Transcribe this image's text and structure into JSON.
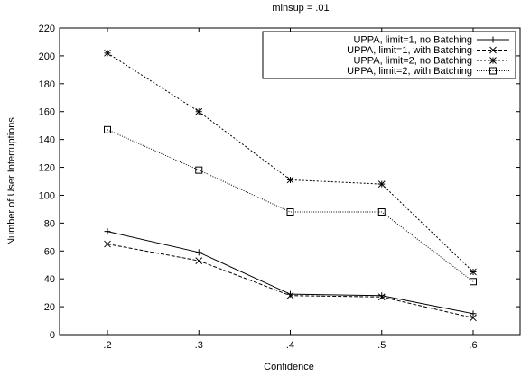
{
  "chart_data": {
    "type": "line",
    "title": "minsup = .01",
    "xlabel": "Confidence",
    "ylabel": "Number of User Interruptions",
    "categories": [
      ".2",
      ".3",
      ".4",
      ".5",
      ".6"
    ],
    "ylim": [
      0,
      220
    ],
    "yticks": [
      0,
      20,
      40,
      60,
      80,
      100,
      120,
      140,
      160,
      180,
      200,
      220
    ],
    "grid": false,
    "legend_position": "top-right",
    "series": [
      {
        "name": "UPPA, limit=1, no Batching",
        "values": [
          74,
          59,
          29,
          28,
          15
        ],
        "marker": "plus",
        "dash": "solid"
      },
      {
        "name": "UPPA, limit=1, with Batching",
        "values": [
          65,
          53,
          28,
          27,
          12
        ],
        "marker": "cross",
        "dash": "dashed"
      },
      {
        "name": "UPPA, limit=2, no Batching",
        "values": [
          202,
          160,
          111,
          108,
          45
        ],
        "marker": "star",
        "dash": "dotted"
      },
      {
        "name": "UPPA, limit=2, with Batching",
        "values": [
          147,
          118,
          88,
          88,
          38
        ],
        "marker": "square",
        "dash": "fine-dotted"
      }
    ]
  }
}
